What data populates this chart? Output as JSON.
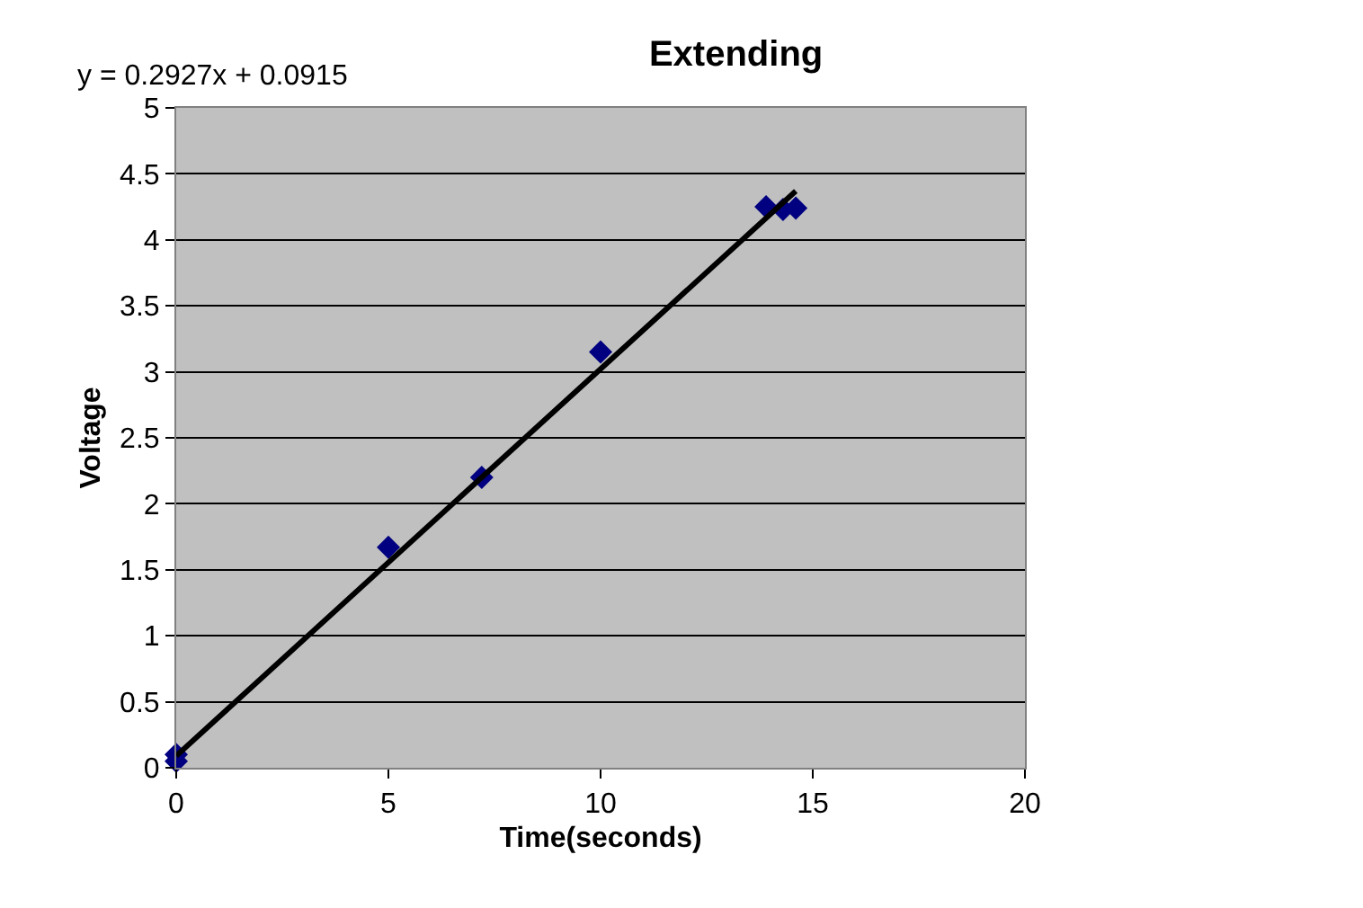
{
  "chart_data": {
    "type": "scatter",
    "title": "Extending",
    "xlabel": "Time(seconds)",
    "ylabel": "Voltage",
    "annotations": [
      "y = 0.2927x + 0.0915"
    ],
    "marker": "diamond",
    "grid": "y",
    "legend": false,
    "series": [
      {
        "color": "#000080",
        "x": [
          0,
          0,
          5,
          7.2,
          10,
          13.9,
          14.3,
          14.6
        ],
        "values": [
          0.05,
          0.1,
          1.67,
          2.2,
          3.15,
          4.25,
          4.23,
          4.24
        ]
      },
      {
        "type": "line",
        "color": "#000000",
        "x": [
          0,
          14.6
        ],
        "values": [
          0.09,
          4.37
        ],
        "marker": "none"
      }
    ],
    "xlim": [
      0,
      20
    ],
    "xticks": [
      0,
      5,
      10,
      15,
      20
    ],
    "ylim": [
      0,
      5
    ],
    "yticks": [
      0,
      0.5,
      1,
      1.5,
      2,
      2.5,
      3,
      3.5,
      4,
      4.5,
      5
    ]
  }
}
